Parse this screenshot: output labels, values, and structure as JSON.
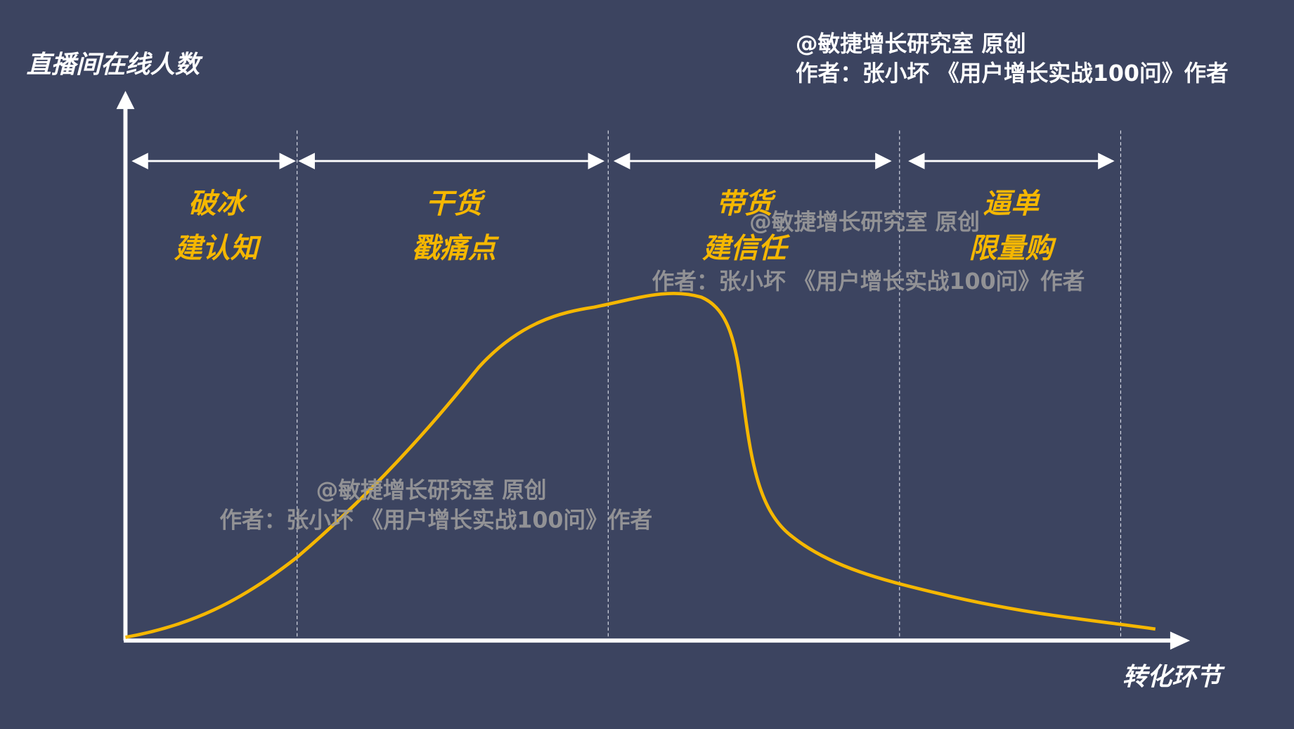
{
  "colors": {
    "background": "#3c4460",
    "curve": "#f5b700",
    "axis": "#ffffff",
    "stage_label": "#f5b700",
    "watermark": "#9b9b9b",
    "credit": "#ffffff"
  },
  "y_axis_label": "直播间在线人数",
  "x_axis_label": "转化环节",
  "credit": {
    "line1": "@敏捷增长研究室 原创",
    "line2": "作者：张小坏 《用户增长实战100问》作者"
  },
  "stages": [
    {
      "line1": "破冰",
      "line2": "建认知"
    },
    {
      "line1": "干货",
      "line2": "戳痛点"
    },
    {
      "line1": "带货",
      "line2": "建信任"
    },
    {
      "line1": "逼单",
      "line2": "限量购"
    }
  ],
  "watermarks": [
    {
      "line1": "@敏捷增长研究室 原创",
      "line2": "作者：张小坏 《用户增长实战100问》作者"
    },
    {
      "line1": "@敏捷增长研究室 原创",
      "line2": "作者：张小坏 《用户增长实战100问》作者"
    }
  ]
}
